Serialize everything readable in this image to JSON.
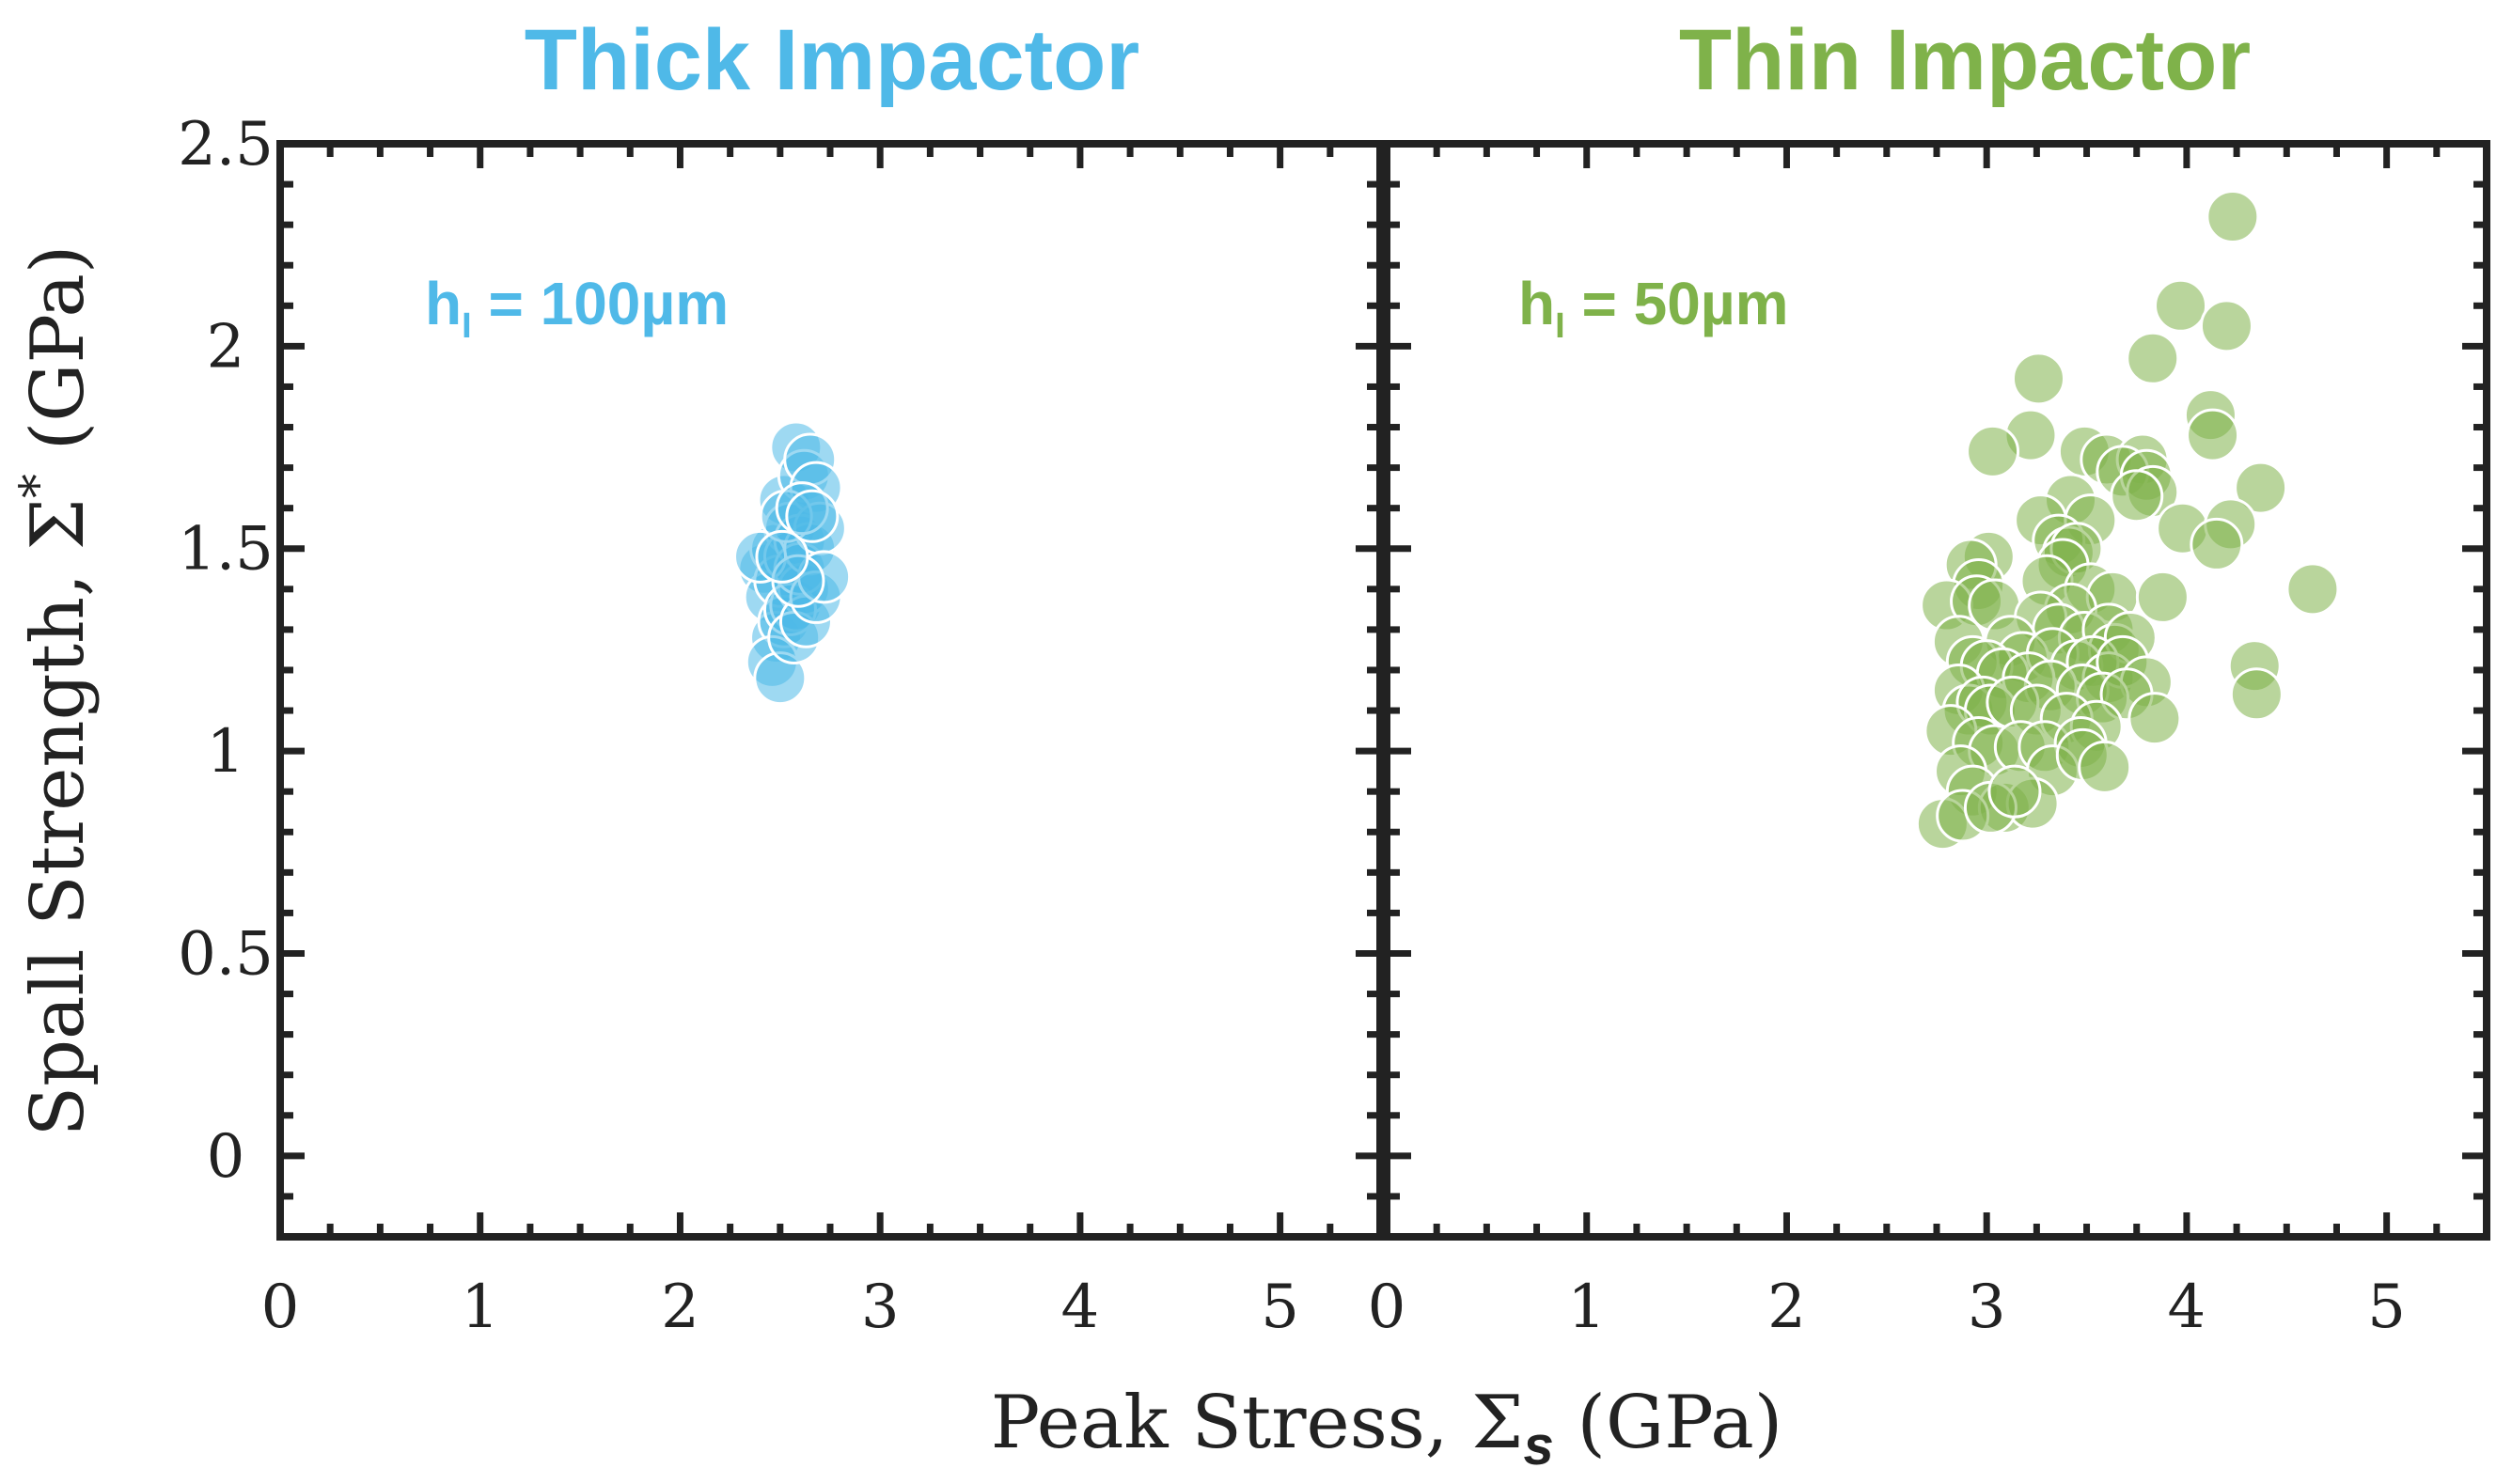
{
  "chart_data": {
    "type": "scatter",
    "ylabel": "Spall Strength, Σ* (GPa)",
    "xlabel": "Peak Stress, Σs (GPa)",
    "xlim": [
      0,
      5.5
    ],
    "ylim": [
      -0.2,
      2.5
    ],
    "xticks": [
      "0",
      "1",
      "2",
      "3",
      "4",
      "5"
    ],
    "yticks": [
      "0",
      "0.5",
      "1",
      "1.5",
      "2",
      "2.5"
    ],
    "panels": [
      {
        "title": "Thick Impactor",
        "annotation": "h = 100µm",
        "annotation_sub": "I",
        "color": "#4fb9e8",
        "points": [
          [
            2.42,
            1.45
          ],
          [
            2.48,
            1.5
          ],
          [
            2.52,
            1.62
          ],
          [
            2.55,
            1.55
          ],
          [
            2.58,
            1.75
          ],
          [
            2.62,
            1.68
          ],
          [
            2.65,
            1.72
          ],
          [
            2.68,
            1.65
          ],
          [
            2.45,
            1.38
          ],
          [
            2.5,
            1.42
          ],
          [
            2.55,
            1.48
          ],
          [
            2.6,
            1.52
          ],
          [
            2.48,
            1.28
          ],
          [
            2.52,
            1.32
          ],
          [
            2.58,
            1.36
          ],
          [
            2.62,
            1.4
          ],
          [
            2.46,
            1.22
          ],
          [
            2.5,
            1.18
          ],
          [
            2.55,
            1.35
          ],
          [
            2.6,
            1.45
          ],
          [
            2.65,
            1.5
          ],
          [
            2.7,
            1.55
          ],
          [
            2.57,
            1.28
          ],
          [
            2.63,
            1.32
          ],
          [
            2.68,
            1.38
          ],
          [
            2.72,
            1.43
          ],
          [
            2.4,
            1.48
          ],
          [
            2.53,
            1.58
          ],
          [
            2.61,
            1.6
          ],
          [
            2.66,
            1.58
          ],
          [
            2.59,
            1.42
          ],
          [
            2.51,
            1.48
          ]
        ]
      },
      {
        "title": "Thin Impactor",
        "annotation": "h = 50µm",
        "annotation_sub": "I",
        "color": "#7fb24a",
        "points": [
          [
            4.23,
            2.32
          ],
          [
            3.97,
            2.1
          ],
          [
            4.2,
            2.05
          ],
          [
            3.83,
            1.97
          ],
          [
            3.26,
            1.92
          ],
          [
            4.12,
            1.83
          ],
          [
            4.13,
            1.78
          ],
          [
            3.22,
            1.78
          ],
          [
            3.03,
            1.74
          ],
          [
            3.49,
            1.74
          ],
          [
            3.6,
            1.72
          ],
          [
            3.78,
            1.72
          ],
          [
            3.68,
            1.69
          ],
          [
            3.8,
            1.68
          ],
          [
            3.83,
            1.64
          ],
          [
            3.75,
            1.63
          ],
          [
            4.37,
            1.65
          ],
          [
            3.42,
            1.62
          ],
          [
            3.27,
            1.57
          ],
          [
            3.52,
            1.57
          ],
          [
            3.36,
            1.52
          ],
          [
            3.41,
            1.49
          ],
          [
            3.45,
            1.5
          ],
          [
            3.38,
            1.46
          ],
          [
            3.98,
            1.55
          ],
          [
            4.22,
            1.56
          ],
          [
            4.15,
            1.51
          ],
          [
            3.01,
            1.48
          ],
          [
            2.92,
            1.46
          ],
          [
            2.96,
            1.41
          ],
          [
            3.3,
            1.42
          ],
          [
            3.52,
            1.4
          ],
          [
            3.63,
            1.38
          ],
          [
            3.88,
            1.38
          ],
          [
            4.63,
            1.4
          ],
          [
            2.8,
            1.36
          ],
          [
            2.95,
            1.37
          ],
          [
            3.04,
            1.36
          ],
          [
            3.42,
            1.35
          ],
          [
            3.27,
            1.33
          ],
          [
            3.36,
            1.3
          ],
          [
            3.49,
            1.28
          ],
          [
            3.61,
            1.3
          ],
          [
            3.64,
            1.25
          ],
          [
            3.72,
            1.28
          ],
          [
            2.86,
            1.27
          ],
          [
            3.12,
            1.27
          ],
          [
            3.18,
            1.23
          ],
          [
            3.33,
            1.24
          ],
          [
            3.45,
            1.21
          ],
          [
            3.53,
            1.22
          ],
          [
            3.61,
            1.18
          ],
          [
            3.68,
            1.22
          ],
          [
            3.8,
            1.17
          ],
          [
            4.34,
            1.21
          ],
          [
            2.93,
            1.22
          ],
          [
            3.0,
            1.21
          ],
          [
            3.08,
            1.19
          ],
          [
            3.21,
            1.18
          ],
          [
            3.32,
            1.16
          ],
          [
            3.48,
            1.15
          ],
          [
            3.58,
            1.13
          ],
          [
            3.7,
            1.14
          ],
          [
            4.35,
            1.14
          ],
          [
            2.86,
            1.15
          ],
          [
            2.91,
            1.1
          ],
          [
            2.98,
            1.12
          ],
          [
            3.02,
            1.1
          ],
          [
            3.13,
            1.12
          ],
          [
            3.25,
            1.1
          ],
          [
            3.4,
            1.08
          ],
          [
            3.55,
            1.06
          ],
          [
            3.84,
            1.08
          ],
          [
            2.82,
            1.05
          ],
          [
            2.96,
            1.02
          ],
          [
            3.04,
            1.0
          ],
          [
            3.17,
            1.01
          ],
          [
            3.29,
            1.01
          ],
          [
            3.47,
            1.02
          ],
          [
            2.87,
            0.95
          ],
          [
            3.33,
            0.95
          ],
          [
            3.48,
            0.99
          ],
          [
            3.59,
            0.96
          ],
          [
            2.93,
            0.9
          ],
          [
            3.09,
            0.86
          ],
          [
            3.23,
            0.87
          ],
          [
            2.78,
            0.82
          ],
          [
            2.88,
            0.84
          ],
          [
            3.02,
            0.86
          ],
          [
            3.14,
            0.9
          ]
        ]
      }
    ]
  }
}
